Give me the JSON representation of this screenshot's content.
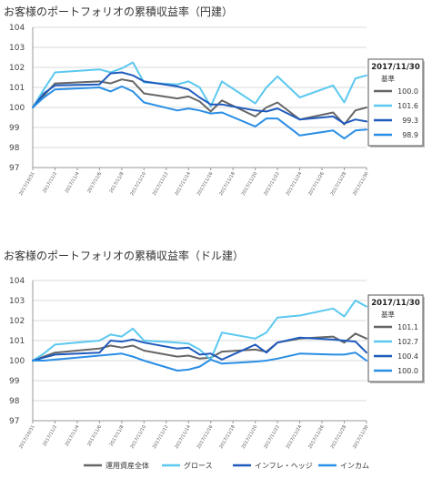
{
  "colors": {
    "all_assets": "#666666",
    "growth": "#5bc8ef",
    "inflation_hedge": "#1f5bbd",
    "income": "#2a8ee6",
    "grid": "#d9d9d9",
    "axis": "#999999"
  },
  "legend": {
    "items": [
      {
        "key": "all_assets",
        "label": "運用資産全体"
      },
      {
        "key": "growth",
        "label": "グロース"
      },
      {
        "key": "inflation_hedge",
        "label": "インフレ・ヘッジ"
      },
      {
        "key": "income",
        "label": "インカム"
      }
    ]
  },
  "chart_data": [
    {
      "type": "line",
      "title": "お客様のポートフォリオの累積収益率（円建）",
      "ylim": [
        97,
        104
      ],
      "yticks": [
        97,
        98,
        99,
        100,
        101,
        102,
        103,
        104
      ],
      "xlabels": [
        "2017/10/31",
        "2017/11/2",
        "2017/11/4",
        "2017/11/6",
        "2017/11/8",
        "2017/11/10",
        "2017/11/12",
        "2017/11/14",
        "2017/11/16",
        "2017/11/18",
        "2017/11/20",
        "2017/11/22",
        "2017/11/24",
        "2017/11/26",
        "2017/11/28",
        "2017/11/30"
      ],
      "x": [
        "2017/10/31",
        "2017/11/1",
        "2017/11/2",
        "2017/11/6",
        "2017/11/7",
        "2017/11/8",
        "2017/11/9",
        "2017/11/10",
        "2017/11/13",
        "2017/11/14",
        "2017/11/15",
        "2017/11/16",
        "2017/11/17",
        "2017/11/20",
        "2017/11/21",
        "2017/11/22",
        "2017/11/24",
        "2017/11/27",
        "2017/11/28",
        "2017/11/29",
        "2017/11/30"
      ],
      "series": [
        {
          "key": "all_assets",
          "name": "運用資産全体",
          "values": [
            100.0,
            100.6,
            101.2,
            101.3,
            101.2,
            101.4,
            101.3,
            100.7,
            100.45,
            100.55,
            100.3,
            99.8,
            100.35,
            99.55,
            100.0,
            100.25,
            99.4,
            99.75,
            99.15,
            99.85,
            100.0
          ]
        },
        {
          "key": "growth",
          "name": "グロース",
          "values": [
            100.0,
            100.9,
            101.75,
            101.9,
            101.75,
            101.95,
            102.25,
            101.25,
            101.15,
            101.3,
            101.0,
            100.05,
            101.3,
            100.2,
            101.0,
            101.55,
            100.5,
            101.1,
            100.25,
            101.45,
            101.6
          ]
        },
        {
          "key": "inflation_hedge",
          "name": "インフレ・ヘッジ",
          "values": [
            100.0,
            100.7,
            101.1,
            101.15,
            101.7,
            101.75,
            101.6,
            101.3,
            101.05,
            100.9,
            100.5,
            100.15,
            100.15,
            99.85,
            99.8,
            99.95,
            99.4,
            99.55,
            99.2,
            99.4,
            99.3
          ]
        },
        {
          "key": "income",
          "name": "インカム",
          "values": [
            100.0,
            100.5,
            100.9,
            101.0,
            100.8,
            101.05,
            100.8,
            100.25,
            99.85,
            99.95,
            99.85,
            99.7,
            99.75,
            99.05,
            99.45,
            99.45,
            98.6,
            98.85,
            98.45,
            98.85,
            98.9
          ]
        }
      ],
      "box": {
        "date": "2017/11/30",
        "sub": "基準",
        "values": [
          "100.0",
          "101.6",
          "99.3",
          "98.9"
        ]
      }
    },
    {
      "type": "line",
      "title": "お客様のポートフォリオの累積収益率（ドル建）",
      "ylim": [
        97,
        104
      ],
      "yticks": [
        97,
        98,
        99,
        100,
        101,
        102,
        103,
        104
      ],
      "xlabels": [
        "2017/10/31",
        "2017/11/2",
        "2017/11/4",
        "2017/11/6",
        "2017/11/8",
        "2017/11/10",
        "2017/11/12",
        "2017/11/14",
        "2017/11/16",
        "2017/11/18",
        "2017/11/20",
        "2017/11/22",
        "2017/11/24",
        "2017/11/26",
        "2017/11/28",
        "2017/11/30"
      ],
      "x": [
        "2017/10/31",
        "2017/11/1",
        "2017/11/2",
        "2017/11/6",
        "2017/11/7",
        "2017/11/8",
        "2017/11/9",
        "2017/11/10",
        "2017/11/13",
        "2017/11/14",
        "2017/11/15",
        "2017/11/16",
        "2017/11/17",
        "2017/11/20",
        "2017/11/21",
        "2017/11/22",
        "2017/11/24",
        "2017/11/27",
        "2017/11/28",
        "2017/11/29",
        "2017/11/30"
      ],
      "series": [
        {
          "key": "all_assets",
          "name": "運用資産全体",
          "values": [
            100.0,
            100.2,
            100.4,
            100.6,
            100.75,
            100.65,
            100.75,
            100.5,
            100.2,
            100.25,
            100.1,
            100.15,
            100.45,
            100.55,
            100.45,
            100.9,
            101.1,
            101.2,
            100.9,
            101.35,
            101.1
          ]
        },
        {
          "key": "growth",
          "name": "グロース",
          "values": [
            100.0,
            100.35,
            100.8,
            101.0,
            101.3,
            101.2,
            101.6,
            101.0,
            100.9,
            100.85,
            100.55,
            100.05,
            101.4,
            101.1,
            101.4,
            102.15,
            102.25,
            102.6,
            102.2,
            103.0,
            102.7
          ]
        },
        {
          "key": "inflation_hedge",
          "name": "インフレ・ヘッジ",
          "values": [
            100.0,
            100.15,
            100.3,
            100.4,
            101.0,
            100.95,
            101.05,
            100.9,
            100.6,
            100.65,
            100.3,
            100.35,
            100.05,
            100.8,
            100.4,
            100.9,
            101.15,
            101.05,
            101.0,
            100.95,
            100.4
          ]
        },
        {
          "key": "income",
          "name": "インカム",
          "values": [
            100.0,
            100.0,
            100.05,
            100.25,
            100.3,
            100.35,
            100.2,
            100.0,
            99.5,
            99.55,
            99.7,
            100.05,
            99.85,
            99.95,
            100.0,
            100.1,
            100.35,
            100.3,
            100.3,
            100.4,
            100.0
          ]
        }
      ],
      "box": {
        "date": "2017/11/30",
        "sub": "基準",
        "values": [
          "101.1",
          "102.7",
          "100.4",
          "100.0"
        ]
      }
    }
  ]
}
